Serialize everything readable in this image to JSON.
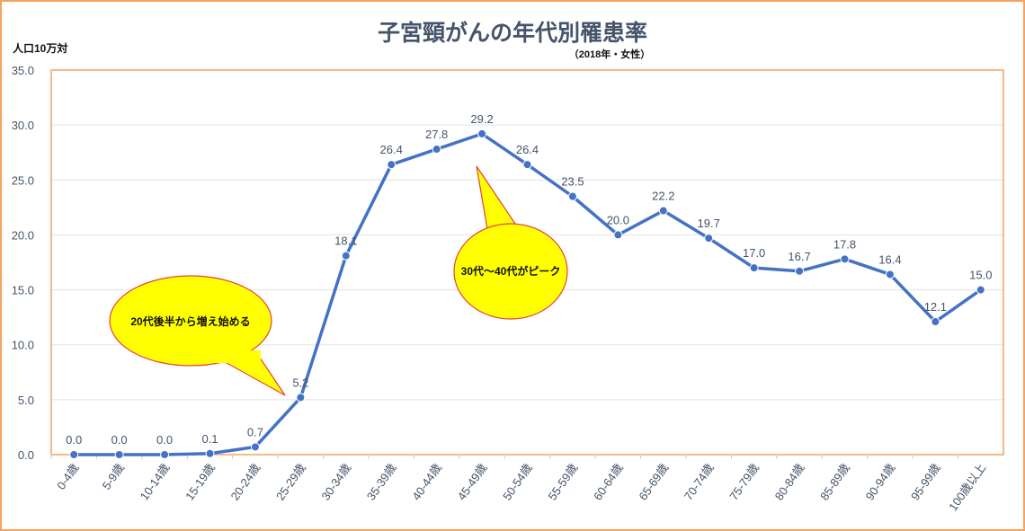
{
  "chart_data": {
    "type": "line",
    "title": "子宮頸がんの年代別罹患率",
    "subtitle": "（2018年・女性）",
    "ylabel": "人口10万対",
    "xlabel": "",
    "ylim": [
      0,
      35
    ],
    "yticks": [
      "0.0",
      "5.0",
      "10.0",
      "15.0",
      "20.0",
      "25.0",
      "30.0",
      "35.0"
    ],
    "grid": true,
    "categories": [
      "0-4歳",
      "5-9歳",
      "10-14歳",
      "15-19歳",
      "20-24歳",
      "25-29歳",
      "30-34歳",
      "35-39歳",
      "40-44歳",
      "45-49歳",
      "50-54歳",
      "55-59歳",
      "60-64歳",
      "65-69歳",
      "70-74歳",
      "75-79歳",
      "80-84歳",
      "85-89歳",
      "90-94歳",
      "95-99歳",
      "100歳以上"
    ],
    "series": [
      {
        "name": "罹患率",
        "values": [
          0.0,
          0.0,
          0.0,
          0.1,
          0.7,
          5.2,
          18.1,
          26.4,
          27.8,
          29.2,
          26.4,
          23.5,
          20.0,
          22.2,
          19.7,
          17.0,
          16.7,
          17.8,
          16.4,
          12.1,
          15.0
        ],
        "labels": [
          "0.0",
          "0.0",
          "0.0",
          "0.1",
          "0.7",
          "5.2",
          "18.1",
          "26.4",
          "27.8",
          "29.2",
          "26.4",
          "23.5",
          "20.0",
          "22.2",
          "19.7",
          "17.0",
          "16.7",
          "17.8",
          "16.4",
          "12.1",
          "15.0"
        ],
        "color": "#4472C4"
      }
    ],
    "annotations": [
      {
        "text": "20代後半から増え始める",
        "points_to": "25-29歳"
      },
      {
        "text": "30代〜40代がピーク",
        "points_to": "45-49歳"
      }
    ]
  },
  "colors": {
    "border": "#F4A460",
    "grid": "#E3E3E3",
    "callout_fill": "#FFFF00",
    "callout_stroke": "#E8403A",
    "text": "#44546A"
  }
}
